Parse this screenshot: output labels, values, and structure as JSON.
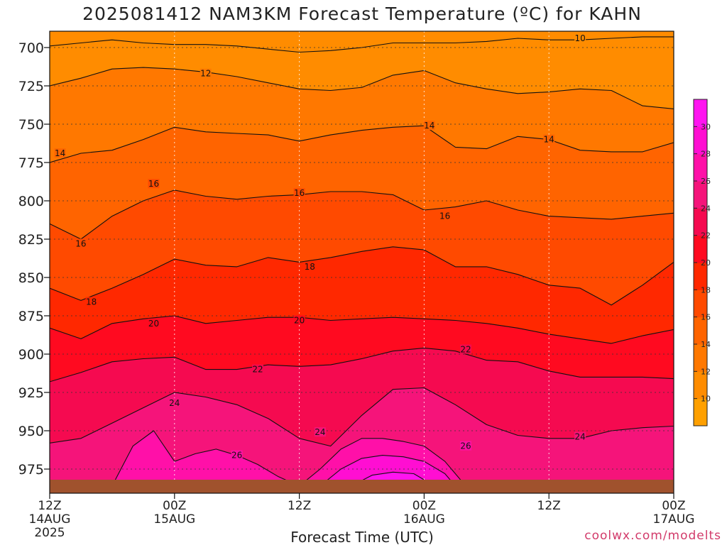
{
  "chart_data": {
    "type": "heatmap",
    "title": "2025081412 NAM3KM Forecast Temperature (ºC) for KAHN",
    "xlabel": "Forecast Time (UTC)",
    "ylabel": "",
    "y_axis": {
      "unit": "hPa",
      "inverted": true,
      "range": [
        975,
        700
      ],
      "ticks": [
        "700",
        "725",
        "750",
        "775",
        "800",
        "825",
        "850",
        "875",
        "900",
        "925",
        "950",
        "975"
      ]
    },
    "x_axis": {
      "range_hours": [
        0,
        60
      ],
      "ticks": [
        {
          "label": "12Z",
          "sub1": "14AUG",
          "sub2": "2025",
          "hour": 0
        },
        {
          "label": "00Z",
          "sub1": "15AUG",
          "sub2": "",
          "hour": 12
        },
        {
          "label": "12Z",
          "sub1": "",
          "sub2": "",
          "hour": 24
        },
        {
          "label": "00Z",
          "sub1": "16AUG",
          "sub2": "",
          "hour": 36
        },
        {
          "label": "12Z",
          "sub1": "",
          "sub2": "",
          "hour": 48
        },
        {
          "label": "00Z",
          "sub1": "17AUG",
          "sub2": "",
          "hour": 60
        }
      ]
    },
    "grid": true,
    "colorbar": {
      "placement": "right",
      "ticks": [
        "10",
        "12",
        "14",
        "16",
        "18",
        "20",
        "22",
        "24",
        "26",
        "28",
        "30"
      ],
      "levels": [
        {
          "min": 8,
          "max": 10,
          "color": "#ffa000"
        },
        {
          "min": 10,
          "max": 12,
          "color": "#ff8c00"
        },
        {
          "min": 12,
          "max": 14,
          "color": "#ff7800"
        },
        {
          "min": 14,
          "max": 16,
          "color": "#ff6400"
        },
        {
          "min": 16,
          "max": 18,
          "color": "#ff4a00"
        },
        {
          "min": 18,
          "max": 20,
          "color": "#ff2800"
        },
        {
          "min": 20,
          "max": 22,
          "color": "#ff0a20"
        },
        {
          "min": 22,
          "max": 24,
          "color": "#f50a50"
        },
        {
          "min": 24,
          "max": 26,
          "color": "#f5147a"
        },
        {
          "min": 26,
          "max": 28,
          "color": "#ff10a8"
        },
        {
          "min": 28,
          "max": 30,
          "color": "#ff0ed2"
        },
        {
          "min": 30,
          "max": 32,
          "color": "#ff14f0"
        }
      ]
    },
    "surface_color": "#a0522d",
    "isotherms": [
      {
        "value": 10,
        "label": "10",
        "points": [
          [
            0,
            699
          ],
          [
            3,
            697
          ],
          [
            6,
            695
          ],
          [
            9,
            697
          ],
          [
            12,
            698
          ],
          [
            15,
            698
          ],
          [
            18,
            699
          ],
          [
            21,
            701
          ],
          [
            24,
            703
          ],
          [
            27,
            702
          ],
          [
            30,
            700
          ],
          [
            33,
            697
          ],
          [
            36,
            697
          ],
          [
            39,
            697
          ],
          [
            42,
            696
          ],
          [
            45,
            694
          ],
          [
            48,
            695
          ],
          [
            51,
            695
          ],
          [
            54,
            694
          ],
          [
            57,
            693
          ],
          [
            60,
            693
          ]
        ]
      },
      {
        "value": 12,
        "label": "12",
        "points": [
          [
            0,
            725
          ],
          [
            3,
            720
          ],
          [
            6,
            714
          ],
          [
            9,
            713
          ],
          [
            12,
            714
          ],
          [
            15,
            716
          ],
          [
            18,
            719
          ],
          [
            21,
            723
          ],
          [
            24,
            727
          ],
          [
            27,
            728
          ],
          [
            30,
            726
          ],
          [
            33,
            718
          ],
          [
            36,
            715
          ],
          [
            39,
            723
          ],
          [
            42,
            727
          ],
          [
            45,
            730
          ],
          [
            48,
            729
          ],
          [
            51,
            727
          ],
          [
            54,
            728
          ],
          [
            57,
            738
          ],
          [
            60,
            740
          ]
        ]
      },
      {
        "value": 14,
        "label": "14",
        "points": [
          [
            0,
            775
          ],
          [
            3,
            769
          ],
          [
            6,
            767
          ],
          [
            9,
            760
          ],
          [
            12,
            752
          ],
          [
            15,
            755
          ],
          [
            18,
            756
          ],
          [
            21,
            757
          ],
          [
            24,
            761
          ],
          [
            27,
            757
          ],
          [
            30,
            754
          ],
          [
            33,
            752
          ],
          [
            36,
            751
          ],
          [
            39,
            765
          ],
          [
            42,
            766
          ],
          [
            45,
            758
          ],
          [
            48,
            760
          ],
          [
            51,
            767
          ],
          [
            54,
            768
          ],
          [
            57,
            768
          ],
          [
            60,
            762
          ]
        ]
      },
      {
        "value": 16,
        "label": "16",
        "points": [
          [
            0,
            815
          ],
          [
            3,
            825
          ],
          [
            6,
            810
          ],
          [
            9,
            800
          ],
          [
            12,
            793
          ],
          [
            15,
            797
          ],
          [
            18,
            799
          ],
          [
            21,
            797
          ],
          [
            24,
            796
          ],
          [
            27,
            794
          ],
          [
            30,
            794
          ],
          [
            33,
            796
          ],
          [
            36,
            806
          ],
          [
            39,
            804
          ],
          [
            42,
            800
          ],
          [
            45,
            806
          ],
          [
            48,
            810
          ],
          [
            51,
            811
          ],
          [
            54,
            812
          ],
          [
            57,
            810
          ],
          [
            60,
            808
          ]
        ]
      },
      {
        "value": 18,
        "label": "18",
        "points": [
          [
            0,
            857
          ],
          [
            3,
            865
          ],
          [
            6,
            857
          ],
          [
            9,
            848
          ],
          [
            12,
            838
          ],
          [
            15,
            842
          ],
          [
            18,
            843
          ],
          [
            21,
            837
          ],
          [
            24,
            840
          ],
          [
            27,
            837
          ],
          [
            30,
            833
          ],
          [
            33,
            830
          ],
          [
            36,
            832
          ],
          [
            39,
            843
          ],
          [
            42,
            843
          ],
          [
            45,
            848
          ],
          [
            48,
            855
          ],
          [
            51,
            857
          ],
          [
            54,
            868
          ],
          [
            57,
            855
          ],
          [
            60,
            840
          ]
        ]
      },
      {
        "value": 20,
        "label": "20",
        "points": [
          [
            0,
            883
          ],
          [
            3,
            890
          ],
          [
            6,
            880
          ],
          [
            9,
            877
          ],
          [
            12,
            875
          ],
          [
            15,
            880
          ],
          [
            18,
            878
          ],
          [
            21,
            876
          ],
          [
            24,
            876
          ],
          [
            27,
            878
          ],
          [
            30,
            877
          ],
          [
            33,
            876
          ],
          [
            36,
            877
          ],
          [
            39,
            878
          ],
          [
            42,
            880
          ],
          [
            45,
            883
          ],
          [
            48,
            887
          ],
          [
            51,
            890
          ],
          [
            54,
            893
          ],
          [
            57,
            888
          ],
          [
            60,
            884
          ]
        ]
      },
      {
        "value": 22,
        "label": "22",
        "points": [
          [
            0,
            918
          ],
          [
            3,
            912
          ],
          [
            6,
            905
          ],
          [
            9,
            903
          ],
          [
            12,
            902
          ],
          [
            15,
            910
          ],
          [
            18,
            910
          ],
          [
            21,
            907
          ],
          [
            24,
            908
          ],
          [
            27,
            907
          ],
          [
            30,
            903
          ],
          [
            33,
            898
          ],
          [
            36,
            896
          ],
          [
            39,
            898
          ],
          [
            42,
            904
          ],
          [
            45,
            905
          ],
          [
            48,
            911
          ],
          [
            51,
            915
          ],
          [
            54,
            915
          ],
          [
            57,
            915
          ],
          [
            60,
            916
          ]
        ]
      },
      {
        "value": 24,
        "label": "24",
        "points": [
          [
            0,
            958
          ],
          [
            3,
            955
          ],
          [
            6,
            945
          ],
          [
            9,
            935
          ],
          [
            12,
            925
          ],
          [
            15,
            928
          ],
          [
            18,
            933
          ],
          [
            21,
            942
          ],
          [
            24,
            955
          ],
          [
            27,
            960
          ],
          [
            30,
            940
          ],
          [
            33,
            923
          ],
          [
            36,
            922
          ],
          [
            39,
            933
          ],
          [
            42,
            946
          ],
          [
            45,
            953
          ],
          [
            48,
            955
          ],
          [
            51,
            955
          ],
          [
            54,
            950
          ],
          [
            57,
            948
          ],
          [
            60,
            947
          ]
        ]
      },
      {
        "value": 26,
        "label": "26",
        "points": [
          [
            6,
            986
          ],
          [
            8,
            960
          ],
          [
            10,
            950
          ],
          [
            12,
            970
          ],
          [
            14,
            965
          ],
          [
            16,
            962
          ],
          [
            18,
            966
          ],
          [
            20,
            972
          ],
          [
            22,
            980
          ],
          [
            24,
            986
          ],
          [
            26,
            975
          ],
          [
            28,
            962
          ],
          [
            30,
            955
          ],
          [
            32,
            955
          ],
          [
            34,
            957
          ],
          [
            36,
            960
          ],
          [
            38,
            970
          ],
          [
            40,
            986
          ]
        ]
      },
      {
        "value": 28,
        "label": "",
        "points": [
          [
            26,
            986
          ],
          [
            28,
            975
          ],
          [
            30,
            968
          ],
          [
            32,
            966
          ],
          [
            34,
            967
          ],
          [
            36,
            970
          ],
          [
            38,
            978
          ],
          [
            39,
            986
          ]
        ]
      },
      {
        "value": 30,
        "label": "",
        "points": [
          [
            29,
            986
          ],
          [
            31,
            979
          ],
          [
            33,
            977
          ],
          [
            35,
            978
          ],
          [
            37,
            986
          ]
        ]
      }
    ],
    "contour_labels": [
      {
        "text": "10",
        "x_hour": 51,
        "y_level": 694
      },
      {
        "text": "12",
        "x_hour": 15,
        "y_level": 717
      },
      {
        "text": "14",
        "x_hour": 1,
        "y_level": 769
      },
      {
        "text": "14",
        "x_hour": 36.5,
        "y_level": 751
      },
      {
        "text": "14",
        "x_hour": 48,
        "y_level": 760
      },
      {
        "text": "16",
        "x_hour": 10,
        "y_level": 789
      },
      {
        "text": "16",
        "x_hour": 24,
        "y_level": 795
      },
      {
        "text": "16",
        "x_hour": 38,
        "y_level": 810
      },
      {
        "text": "16",
        "x_hour": 3,
        "y_level": 828
      },
      {
        "text": "18",
        "x_hour": 25,
        "y_level": 843
      },
      {
        "text": "18",
        "x_hour": 4,
        "y_level": 866
      },
      {
        "text": "20",
        "x_hour": 10,
        "y_level": 880
      },
      {
        "text": "20",
        "x_hour": 24,
        "y_level": 878
      },
      {
        "text": "22",
        "x_hour": 20,
        "y_level": 910
      },
      {
        "text": "22",
        "x_hour": 40,
        "y_level": 897
      },
      {
        "text": "24",
        "x_hour": 12,
        "y_level": 932
      },
      {
        "text": "24",
        "x_hour": 26,
        "y_level": 951
      },
      {
        "text": "24",
        "x_hour": 51,
        "y_level": 954
      },
      {
        "text": "26",
        "x_hour": 18,
        "y_level": 966
      },
      {
        "text": "26",
        "x_hour": 40,
        "y_level": 960
      }
    ]
  },
  "credit": "coolwx.com/modelts"
}
